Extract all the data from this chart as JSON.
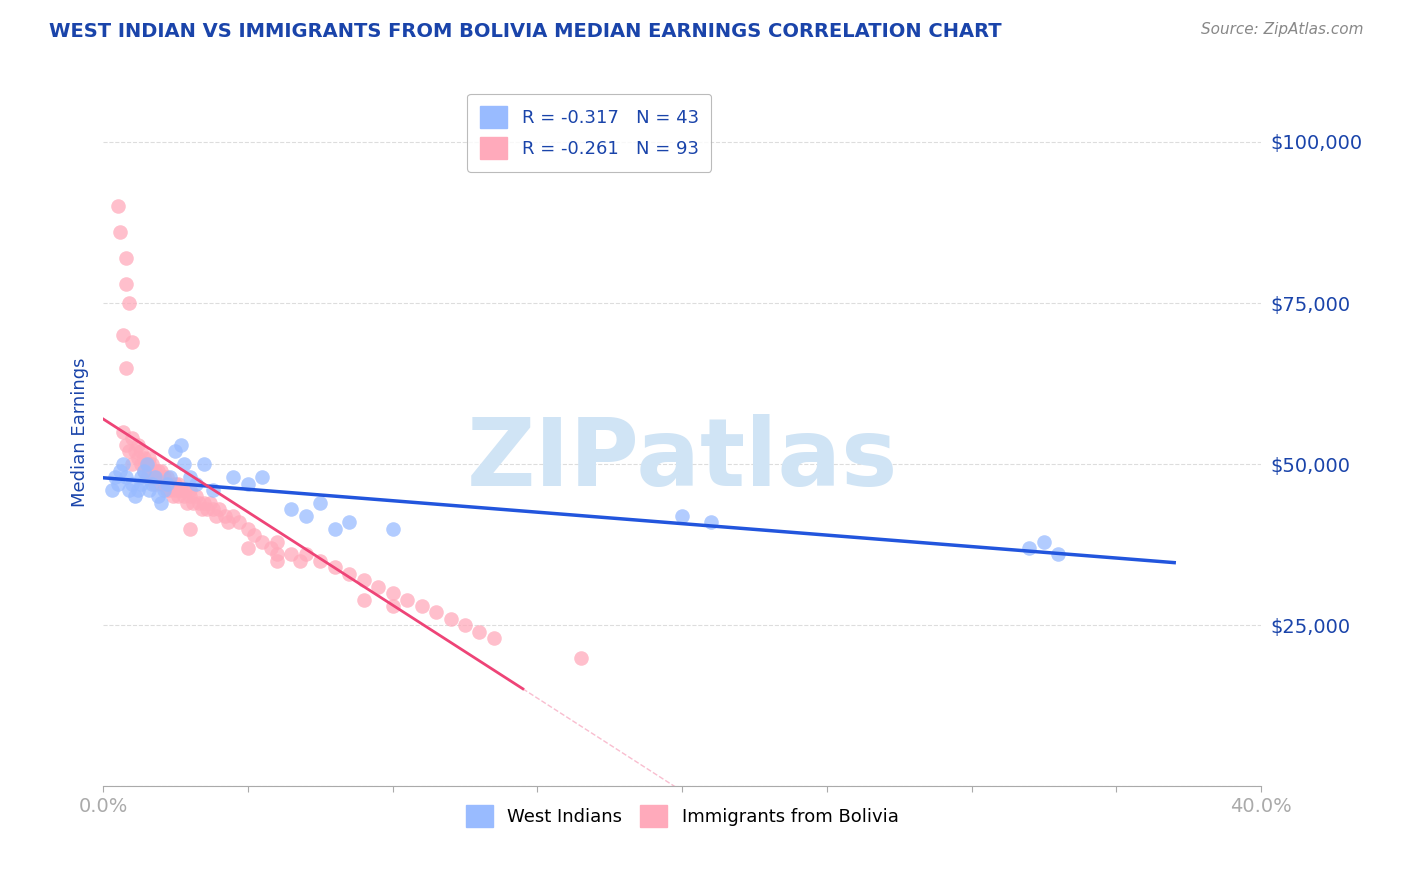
{
  "title": "WEST INDIAN VS IMMIGRANTS FROM BOLIVIA MEDIAN EARNINGS CORRELATION CHART",
  "source": "Source: ZipAtlas.com",
  "ylabel": "Median Earnings",
  "xlim": [
    0,
    0.4
  ],
  "ylim": [
    0,
    110000
  ],
  "yticks": [
    0,
    25000,
    50000,
    75000,
    100000
  ],
  "ytick_labels": [
    "",
    "$25,000",
    "$50,000",
    "$75,000",
    "$100,000"
  ],
  "xtick_labels": [
    "0.0%",
    "",
    "",
    "",
    "",
    "",
    "",
    "",
    "40.0%"
  ],
  "xticks": [
    0.0,
    0.05,
    0.1,
    0.15,
    0.2,
    0.25,
    0.3,
    0.35,
    0.4
  ],
  "legend_entries": [
    {
      "label": "R = -0.317   N = 43",
      "color": "#99bbff"
    },
    {
      "label": "R = -0.261   N = 93",
      "color": "#ffaabb"
    }
  ],
  "legend_labels": [
    "West Indians",
    "Immigrants from Bolivia"
  ],
  "west_indian_color": "#99bbff",
  "bolivia_color": "#ffaabb",
  "trend_blue_color": "#2255dd",
  "trend_pink_color": "#ee4477",
  "watermark": "ZIPatlas",
  "watermark_color": "#d0e4f5",
  "title_color": "#1a44aa",
  "axis_label_color": "#1a44aa",
  "tick_color": "#1a44aa",
  "grid_color": "#dddddd",
  "west_indians_x": [
    0.003,
    0.004,
    0.005,
    0.006,
    0.007,
    0.008,
    0.009,
    0.01,
    0.011,
    0.012,
    0.013,
    0.013,
    0.014,
    0.015,
    0.016,
    0.017,
    0.018,
    0.019,
    0.02,
    0.021,
    0.022,
    0.023,
    0.025,
    0.027,
    0.028,
    0.03,
    0.032,
    0.035,
    0.038,
    0.045,
    0.05,
    0.055,
    0.065,
    0.07,
    0.075,
    0.08,
    0.085,
    0.1,
    0.2,
    0.21,
    0.32,
    0.325,
    0.33
  ],
  "west_indians_y": [
    46000,
    48000,
    47000,
    49000,
    50000,
    48000,
    46000,
    47000,
    45000,
    46000,
    48000,
    47000,
    49000,
    50000,
    46000,
    47000,
    48000,
    45000,
    44000,
    46000,
    47000,
    48000,
    52000,
    53000,
    50000,
    48000,
    47000,
    50000,
    46000,
    48000,
    47000,
    48000,
    43000,
    42000,
    44000,
    40000,
    41000,
    40000,
    42000,
    41000,
    37000,
    38000,
    36000
  ],
  "bolivia_x": [
    0.005,
    0.006,
    0.007,
    0.008,
    0.009,
    0.01,
    0.01,
    0.011,
    0.012,
    0.012,
    0.013,
    0.013,
    0.014,
    0.014,
    0.015,
    0.015,
    0.016,
    0.016,
    0.016,
    0.017,
    0.017,
    0.018,
    0.018,
    0.018,
    0.019,
    0.019,
    0.02,
    0.02,
    0.021,
    0.021,
    0.022,
    0.022,
    0.023,
    0.023,
    0.024,
    0.025,
    0.025,
    0.026,
    0.026,
    0.027,
    0.028,
    0.028,
    0.029,
    0.03,
    0.03,
    0.031,
    0.032,
    0.033,
    0.034,
    0.035,
    0.036,
    0.037,
    0.038,
    0.039,
    0.04,
    0.042,
    0.043,
    0.045,
    0.047,
    0.05,
    0.052,
    0.055,
    0.058,
    0.06,
    0.065,
    0.068,
    0.07,
    0.075,
    0.08,
    0.085,
    0.09,
    0.095,
    0.1,
    0.105,
    0.11,
    0.115,
    0.12,
    0.125,
    0.13,
    0.135,
    0.05,
    0.06,
    0.008,
    0.008,
    0.009,
    0.01,
    0.165,
    0.03,
    0.06,
    0.09,
    0.007,
    0.008,
    0.1
  ],
  "bolivia_y": [
    90000,
    86000,
    55000,
    53000,
    52000,
    54000,
    50000,
    52000,
    53000,
    51000,
    52000,
    50000,
    49000,
    51000,
    50000,
    48000,
    50000,
    49000,
    51000,
    48000,
    50000,
    49000,
    48000,
    47000,
    49000,
    48000,
    47000,
    49000,
    48000,
    47000,
    48000,
    46000,
    47000,
    46000,
    45000,
    47000,
    46000,
    45000,
    47000,
    46000,
    45000,
    46000,
    44000,
    46000,
    45000,
    44000,
    45000,
    44000,
    43000,
    44000,
    43000,
    44000,
    43000,
    42000,
    43000,
    42000,
    41000,
    42000,
    41000,
    40000,
    39000,
    38000,
    37000,
    38000,
    36000,
    35000,
    36000,
    35000,
    34000,
    33000,
    32000,
    31000,
    30000,
    29000,
    28000,
    27000,
    26000,
    25000,
    24000,
    23000,
    37000,
    36000,
    78000,
    82000,
    75000,
    69000,
    20000,
    40000,
    35000,
    29000,
    70000,
    65000,
    28000
  ]
}
